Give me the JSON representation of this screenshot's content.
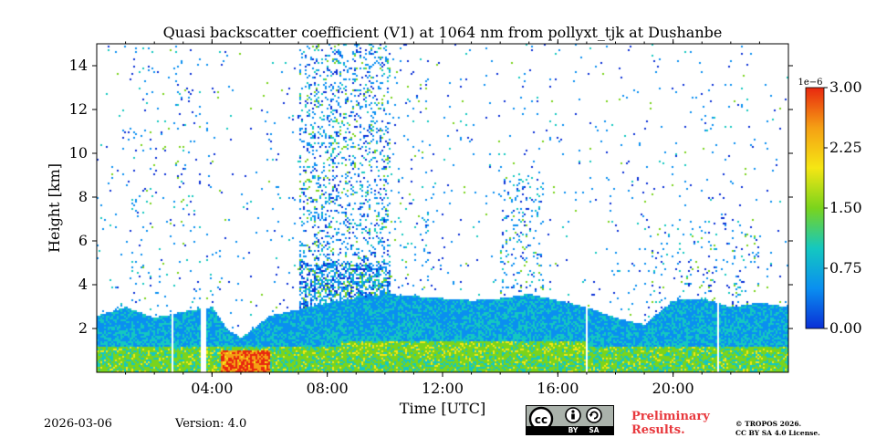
{
  "chart_data": {
    "type": "heatmap",
    "title": "Quasi backscatter coefficient (V1) at 1064 nm from pollyxt_tjk at Dushanbe",
    "xlabel": "Time [UTC]",
    "ylabel": "Height [km]",
    "xlim_hours": [
      0,
      24
    ],
    "ylim_km": [
      0,
      15
    ],
    "x_ticks": [
      {
        "value": 4,
        "label": "04:00"
      },
      {
        "value": 8,
        "label": "08:00"
      },
      {
        "value": 12,
        "label": "12:00"
      },
      {
        "value": 16,
        "label": "16:00"
      },
      {
        "value": 20,
        "label": "20:00"
      }
    ],
    "y_ticks": [
      {
        "value": 2,
        "label": "2"
      },
      {
        "value": 4,
        "label": "4"
      },
      {
        "value": 6,
        "label": "6"
      },
      {
        "value": 8,
        "label": "8"
      },
      {
        "value": 10,
        "label": "10"
      },
      {
        "value": 12,
        "label": "12"
      },
      {
        "value": 14,
        "label": "14"
      }
    ],
    "colorbar": {
      "min": 0.0,
      "max": 3.0,
      "scale_label": "1e−6",
      "ticks": [
        {
          "value": 0.0,
          "label": "0.00"
        },
        {
          "value": 0.75,
          "label": "0.75"
        },
        {
          "value": 1.5,
          "label": "1.50"
        },
        {
          "value": 2.25,
          "label": "2.25"
        },
        {
          "value": 3.0,
          "label": "3.00"
        }
      ],
      "colors": [
        "#0a2fd6",
        "#0a8ff0",
        "#14c8c0",
        "#7ad41c",
        "#f5e614",
        "#f5a014",
        "#e8280f"
      ]
    },
    "boundary_layer_top_km": [
      [
        0.0,
        2.6
      ],
      [
        1.0,
        3.0
      ],
      [
        2.0,
        2.5
      ],
      [
        3.0,
        2.8
      ],
      [
        4.0,
        3.0
      ],
      [
        4.5,
        2.0
      ],
      [
        5.0,
        1.6
      ],
      [
        6.0,
        2.6
      ],
      [
        7.0,
        2.9
      ],
      [
        8.0,
        3.2
      ],
      [
        9.0,
        3.4
      ],
      [
        10.0,
        3.6
      ],
      [
        11.0,
        3.5
      ],
      [
        12.0,
        3.4
      ],
      [
        13.0,
        3.3
      ],
      [
        14.0,
        3.4
      ],
      [
        15.0,
        3.6
      ],
      [
        16.0,
        3.3
      ],
      [
        17.0,
        3.0
      ],
      [
        18.0,
        2.5
      ],
      [
        19.0,
        2.2
      ],
      [
        20.0,
        3.3
      ],
      [
        21.0,
        3.4
      ],
      [
        22.0,
        3.0
      ],
      [
        23.0,
        3.2
      ],
      [
        24.0,
        3.0
      ]
    ],
    "data_gaps_hours": [
      [
        2.55,
        2.62
      ],
      [
        3.6,
        3.8
      ],
      [
        16.95,
        17.05
      ],
      [
        21.5,
        21.6
      ]
    ]
  },
  "footer": {
    "date": "2026-03-06",
    "version": "Version: 4.0",
    "license_badge": [
      "BY",
      "SA"
    ],
    "preliminary": [
      "Preliminary",
      "Results."
    ],
    "copyright": [
      "© TROPOS 2026.",
      "CC BY SA 4.0 License."
    ]
  }
}
